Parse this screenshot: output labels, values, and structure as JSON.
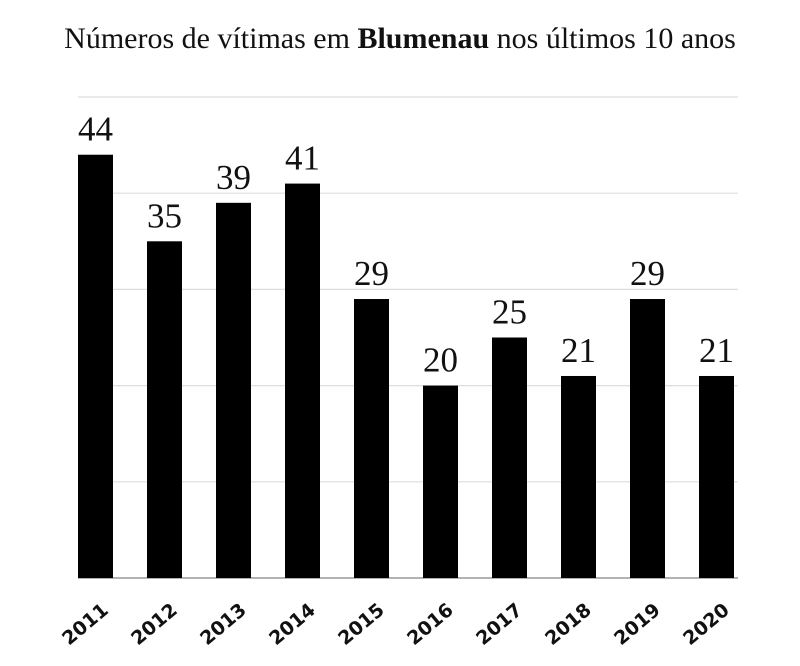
{
  "chart_data": {
    "type": "bar",
    "title_parts": [
      "Números de vítimas em ",
      "Blumenau",
      " nos últimos 10 anos"
    ],
    "title_bold_part": 1,
    "categories": [
      "2011",
      "2012",
      "2013",
      "2014",
      "2015",
      "2016",
      "2017",
      "2018",
      "2019",
      "2020"
    ],
    "values": [
      44,
      35,
      39,
      41,
      29,
      20,
      25,
      21,
      29,
      21
    ],
    "color": "#000000",
    "ylim": [
      0,
      50
    ],
    "yticks": [
      0,
      10,
      20,
      30,
      40,
      50
    ],
    "grid": true,
    "show_tick_labels": false,
    "data_labels": true
  }
}
